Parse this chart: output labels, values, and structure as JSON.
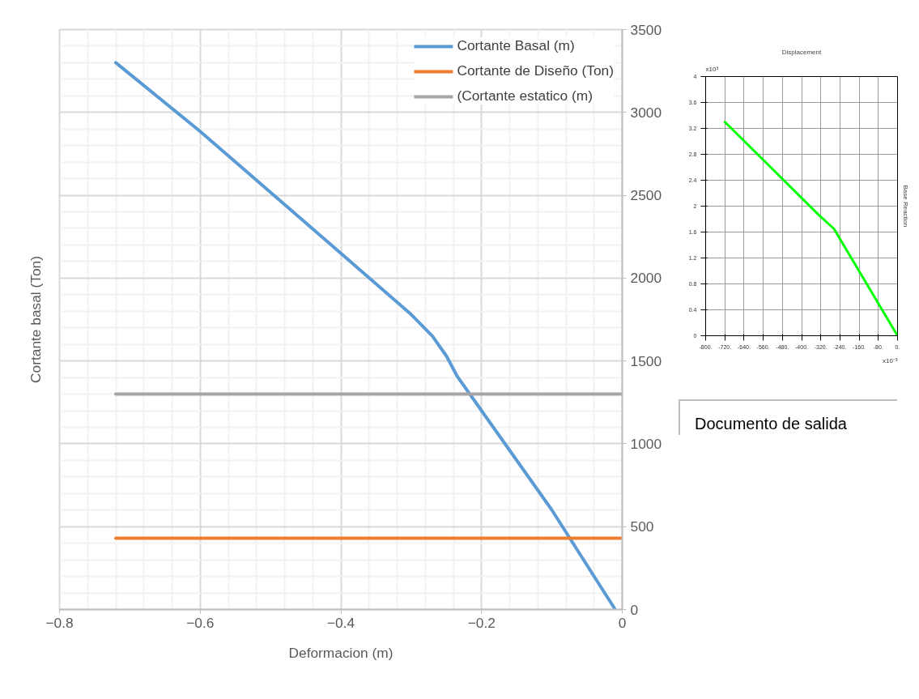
{
  "chart_data": [
    {
      "type": "line",
      "xlabel": "Deformacion (m)",
      "ylabel": "Cortante basal (Ton)",
      "xlim": [
        -0.8,
        0
      ],
      "xticks": [
        -0.8,
        -0.6,
        -0.4,
        -0.2,
        0
      ],
      "ylim": [
        0,
        3500
      ],
      "yticks": [
        0,
        500,
        1000,
        1500,
        2000,
        2500,
        3000,
        3500
      ],
      "grid": true,
      "legend": "top right",
      "marker": "none",
      "line_style": "solid",
      "annotations": [
        "Documento de salida"
      ],
      "series": [
        {
          "name": "Cortante Basal (m)",
          "color": "#5b9bd5",
          "x": [
            -0.72,
            -0.6,
            -0.4,
            -0.3,
            -0.27,
            -0.25,
            -0.235,
            -0.2,
            -0.1,
            -0.01
          ],
          "values": [
            3300,
            2885,
            2150,
            1780,
            1650,
            1530,
            1410,
            1200,
            600,
            0
          ]
        },
        {
          "name": "Cortante de Diseño (Ton)",
          "color": "#ed7d31",
          "x": [
            -0.72,
            0
          ],
          "values": [
            430,
            430
          ]
        },
        {
          "name": "(Cortante estatico (m)",
          "color": "#a5a5a5",
          "x": [
            -0.72,
            0
          ],
          "values": [
            1300,
            1300
          ]
        }
      ]
    },
    {
      "type": "line",
      "title": "Displacement",
      "ylabel": "Base Reaction",
      "xlim": [
        -800,
        0
      ],
      "xticks": [
        {
          "value": -800,
          "label": "-800."
        },
        {
          "value": -720,
          "label": "-720."
        },
        {
          "value": -640,
          "label": "-640."
        },
        {
          "value": -560,
          "label": "-560."
        },
        {
          "value": -480,
          "label": "-480."
        },
        {
          "value": -400,
          "label": "-400."
        },
        {
          "value": -320,
          "label": "-320."
        },
        {
          "value": -240,
          "label": "-240."
        },
        {
          "value": -160,
          "label": "-160."
        },
        {
          "value": -80,
          "label": "-80."
        },
        {
          "value": 0,
          "label": "0."
        }
      ],
      "ylim": [
        0,
        4
      ],
      "yticks": [
        0,
        0.4,
        0.8,
        1.2,
        1.6,
        2,
        2.4,
        2.8,
        3.2,
        3.6,
        4
      ],
      "grid": true,
      "legend": false,
      "marker": "none",
      "line_style": "solid",
      "annotations": [
        "x10³",
        "x10⁻³"
      ],
      "series": [
        {
          "color": "#00ff00",
          "x": [
            -720,
            -330,
            -265,
            0
          ],
          "values": [
            3.3,
            1.87,
            1.65,
            0
          ]
        }
      ]
    }
  ]
}
